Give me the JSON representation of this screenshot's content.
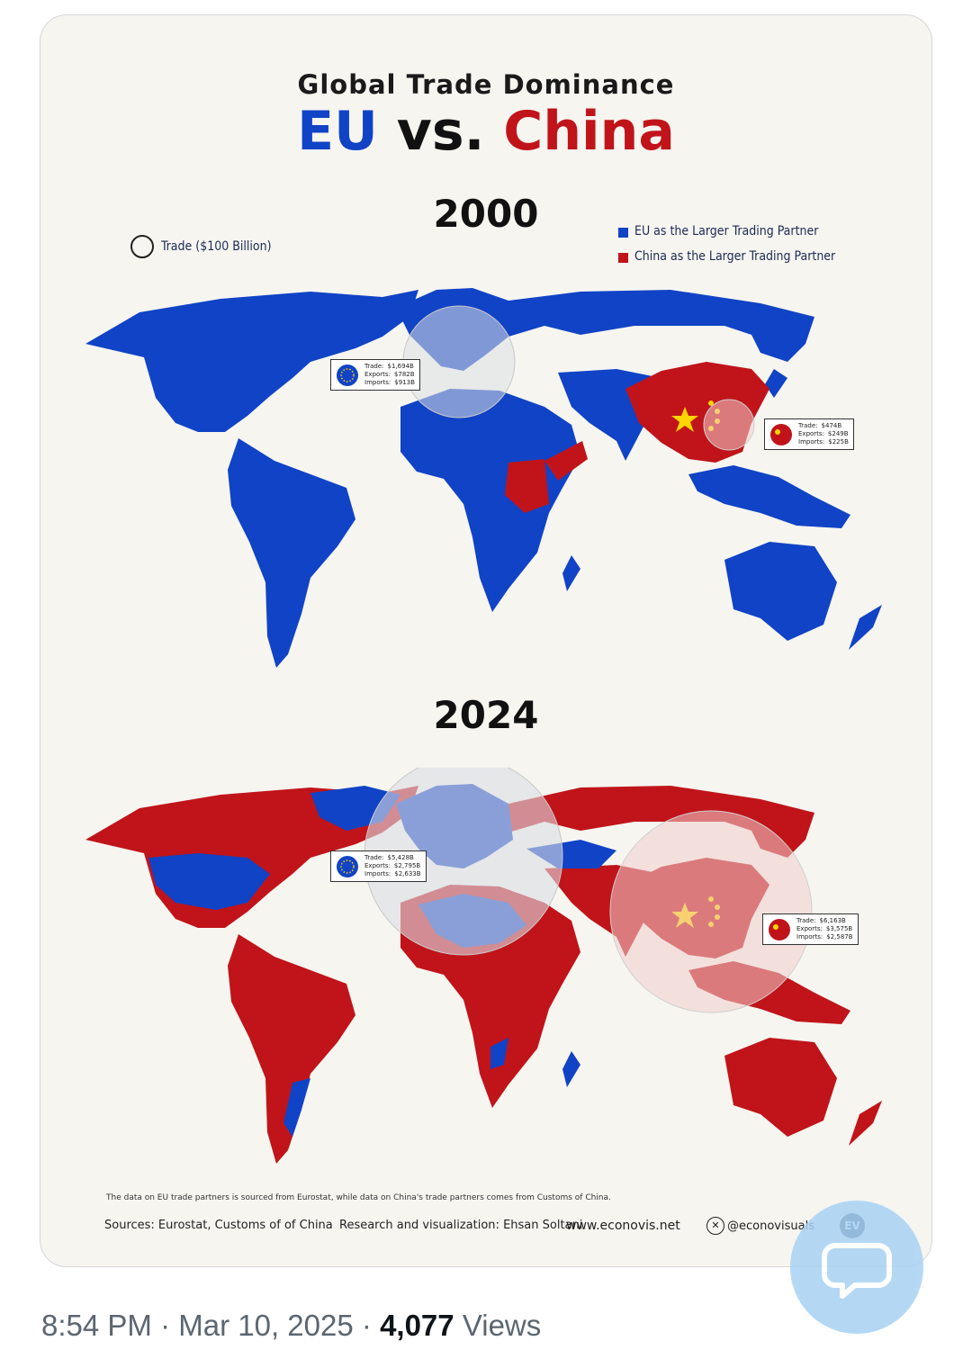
{
  "header": {
    "kicker": "Global Trade Dominance",
    "eu": "EU",
    "vs": "vs.",
    "china": "China"
  },
  "legend": {
    "bubble_label": "Trade ($100 Billion)",
    "eu_label": "EU as the Larger Trading Partner",
    "china_label": "China as the Larger Trading Partner",
    "eu_color": "#1143c6",
    "china_color": "#c0141a"
  },
  "panels": [
    {
      "year": "2000",
      "eu": {
        "trade": "$1,694B",
        "exports": "$782B",
        "imports": "$913B"
      },
      "china": {
        "trade": "$474B",
        "exports": "$249B",
        "imports": "$225B"
      }
    },
    {
      "year": "2024",
      "eu": {
        "trade": "$5,428B",
        "exports": "$2,795B",
        "imports": "$2,633B"
      },
      "china": {
        "trade": "$6,163B",
        "exports": "$3,575B",
        "imports": "$2,587B"
      }
    }
  ],
  "labels": {
    "trade": "Trade:",
    "exports": "Exports:",
    "imports": "Imports:"
  },
  "footer": {
    "note": "The data on EU trade partners is sourced from Eurostat, while data on China's trade partners comes from Customs of China.",
    "sources": "Sources: Eurostat, Customs of of China",
    "credit": "Research and visualization: Ehsan Soltani",
    "website": "www.econovis.net",
    "handle": "@econovisuals",
    "logo": "EV"
  },
  "tweet": {
    "time": "8:54 PM",
    "sep": "·",
    "date": "Mar 10, 2025",
    "views_count": "4,077",
    "views_label": "Views"
  },
  "icons": [
    "eu-flag-icon",
    "china-flag-icon",
    "x-logo-icon",
    "reply-bubble-icon"
  ]
}
